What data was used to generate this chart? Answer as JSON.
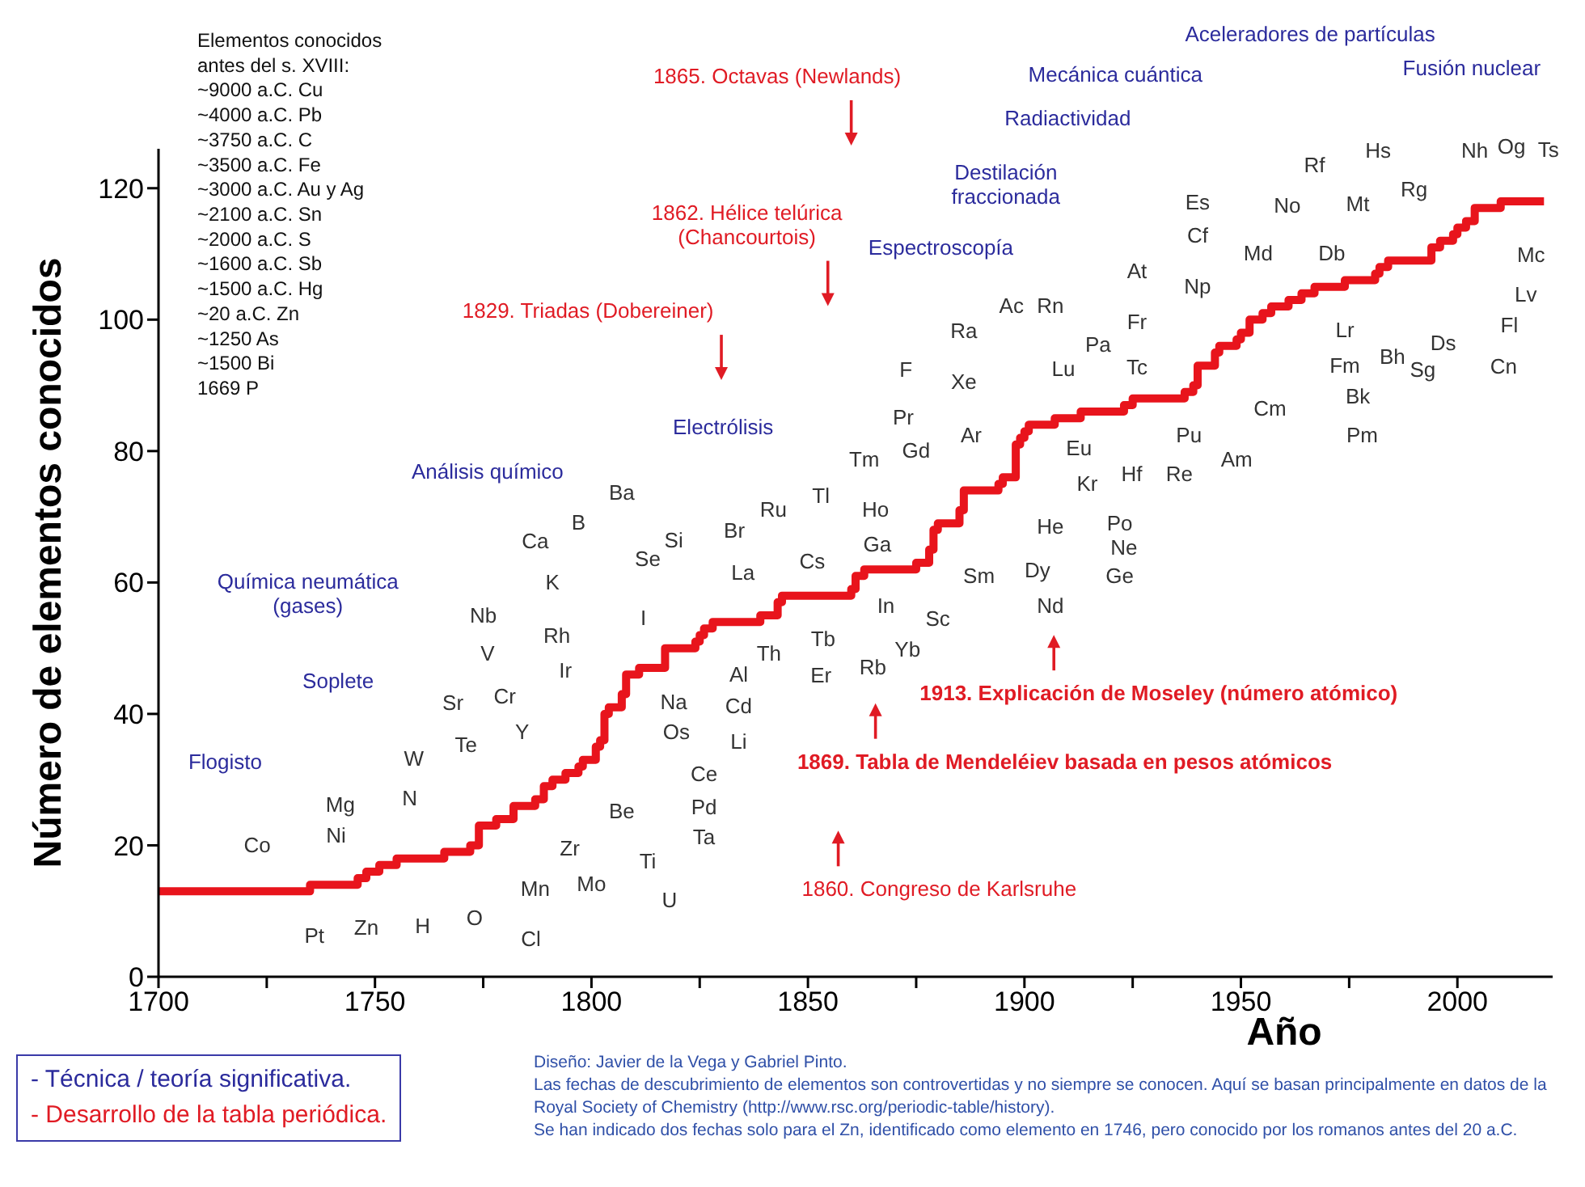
{
  "chart_data": {
    "type": "step",
    "xlabel": "Año",
    "ylabel": "Número de elementos conocidos",
    "x": [
      1700,
      1735,
      1746,
      1748,
      1751,
      1755,
      1766,
      1772,
      1774,
      1778,
      1782,
      1787,
      1789,
      1791,
      1794,
      1797,
      1798,
      1801,
      1802,
      1803,
      1804,
      1807,
      1808,
      1811,
      1817,
      1824,
      1825,
      1826,
      1828,
      1839,
      1843,
      1844,
      1860,
      1861,
      1863,
      1875,
      1878,
      1879,
      1880,
      1885,
      1886,
      1894,
      1895,
      1898,
      1899,
      1900,
      1901,
      1907,
      1913,
      1923,
      1925,
      1937,
      1939,
      1940,
      1944,
      1945,
      1949,
      1950,
      1952,
      1955,
      1957,
      1961,
      1964,
      1967,
      1974,
      1981,
      1982,
      1984,
      1994,
      1996,
      1999,
      2000,
      2002,
      2004,
      2010,
      2020
    ],
    "series": [
      {
        "color": "#e8141c",
        "values": [
          13,
          14,
          15,
          16,
          17,
          18,
          19,
          20,
          23,
          24,
          26,
          27,
          29,
          30,
          31,
          32,
          33,
          35,
          36,
          40,
          41,
          43,
          46,
          47,
          50,
          51,
          52,
          53,
          54,
          55,
          57,
          58,
          59,
          61,
          62,
          63,
          65,
          68,
          69,
          71,
          74,
          75,
          76,
          81,
          82,
          83,
          84,
          85,
          86,
          87,
          88,
          89,
          90,
          93,
          95,
          96,
          97,
          98,
          100,
          101,
          102,
          103,
          104,
          105,
          106,
          107,
          108,
          109,
          111,
          112,
          113,
          114,
          115,
          117,
          118,
          118
        ]
      }
    ],
    "marker": "none",
    "line_style": "solid",
    "grid": false,
    "legend": false,
    "xlim": [
      1700,
      2022
    ],
    "xticks": [
      1700,
      {
        "value": 1725,
        "label": null
      },
      1750,
      {
        "value": 1775,
        "label": null
      },
      1800,
      {
        "value": 1825,
        "label": null
      },
      1850,
      {
        "value": 1875,
        "label": null
      },
      1900,
      {
        "value": 1925,
        "label": null
      },
      1950,
      {
        "value": 1975,
        "label": null
      },
      2000
    ],
    "ylim": [
      0,
      126
    ],
    "yticks": [
      0,
      20,
      40,
      60,
      80,
      100,
      120
    ],
    "annotations": [
      "Elementos conocidos\nantes del s. XVIII:\n\n~9000 a.C. Cu\n~4000 a.C. Pb\n~3750 a.C. C\n~3500 a.C. Fe\n~3000 a.C. Au y Ag\n~2100 a.C. Sn\n~2000 a.C. S\n~1600 a.C. Sb\n~1500 a.C. Hg\n~20 a.C. Zn\n~1250 As\n~1500 Bi\n1669 P",
      "Diseño: Javier de la Vega y Gabriel Pinto.",
      "Las fechas de descubrimiento de elementos son controvertidas y no siempre se conocen. Aquí se basan principalmente en datos de la Royal Society of Chemistry (http://www.rsc.org/periodic-table/history).",
      "Se han indicado dos fechas solo para el Zn, identificado como elemento en 1746, pero conocido por los romanos antes del 20 a.C.",
      "- Técnica / teoría significativa.",
      "- Desarrollo de la tabla periódica.",
      "1829. Triadas (Dobereiner)",
      "1862. Hélice telúrica\n(Chancourtois)",
      "1865. Octavas (Newlands)",
      "1860. Congreso de Karlsruhe",
      "1869. Tabla de Mendeléiev basada en pesos atómicos",
      "1913. Explicación de Moseley (número atómico)",
      "Flogisto",
      "Soplete",
      "Química neumática\n(gases)",
      "Análisis químico",
      "Electrólisis",
      "Espectroscopía",
      "Destilación\nfraccionada",
      "Radiactividad",
      "Mecánica cuántica",
      "Aceleradores de partículas",
      "Fusión nuclear",
      "Co",
      "Pt",
      "Zn",
      "Mg",
      "Ni",
      "H",
      "O",
      "Cl",
      "N",
      "W",
      "Mn",
      "Mo",
      "Te",
      "Sr",
      "Cr",
      "Y",
      "Zr",
      "Ti",
      "U",
      "Be",
      "V",
      "Nb",
      "Ir",
      "Rh",
      "K",
      "Ca",
      "B",
      "Ba",
      "Se",
      "Si",
      "I",
      "Br",
      "Ru",
      "La",
      "Tl",
      "Cs",
      "Na",
      "Os",
      "Cd",
      "Li",
      "Ce",
      "Pd",
      "Ta",
      "Al",
      "Th",
      "Tb",
      "Er",
      "Rb",
      "In",
      "Yb",
      "Sc",
      "Ho",
      "Ga",
      "Tm",
      "Gd",
      "Pr",
      "F",
      "Xe",
      "Ra",
      "Ac",
      "Rn",
      "Ar",
      "Sm",
      "Dy",
      "Nd",
      "He",
      "Ge",
      "Po",
      "Ne",
      "Kr",
      "Eu",
      "Lu",
      "Pa",
      "Hf",
      "Re",
      "Tc",
      "Fr",
      "At",
      "Np",
      "Pu",
      "Am",
      "Cm",
      "Es",
      "Cf",
      "Md",
      "No",
      "Rf",
      "Lr",
      "Fm",
      "Bk",
      "Pm",
      "Db",
      "Mt",
      "Hs",
      "Bh",
      "Sg",
      "Rg",
      "Ds",
      "Nh",
      "Og",
      "Ts",
      "Cn",
      "Fl",
      "Lv",
      "Mc"
    ]
  }
}
